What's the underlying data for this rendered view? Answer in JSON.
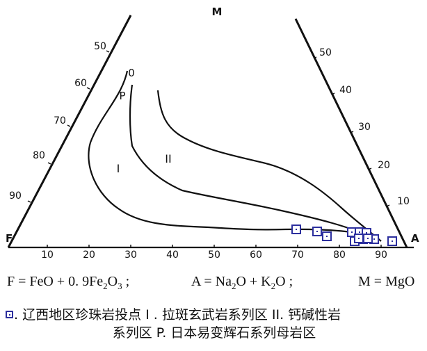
{
  "diagram": {
    "vertex_labels": {
      "top": "M",
      "left": "F",
      "right": "A"
    },
    "bottom_axis_ticks": [
      "10",
      "20",
      "30",
      "40",
      "50",
      "60",
      "70",
      "80",
      "90"
    ],
    "left_axis_ticks": [
      "50",
      "60",
      "70",
      "80",
      "90"
    ],
    "right_axis_ticks": [
      "50",
      "40",
      "30",
      "20",
      "10"
    ],
    "curve_labels": {
      "top_end": "0",
      "p": "P",
      "field_1": "I",
      "field_2": "II"
    },
    "sample_marker_color": "#2c2f9e",
    "line_color": "#111111",
    "sample_count": 12
  },
  "formulas": {
    "f": {
      "lhs": "F = FeO + 0. 9Fe",
      "s1": "2",
      "mid": "O",
      "s2": "3",
      "end": " ;"
    },
    "a": {
      "lhs": "A = Na",
      "s1": "2",
      "mid": "O + K",
      "s2": "2",
      "end": "O ;"
    },
    "m": {
      "text": "M = MgO"
    }
  },
  "legend": {
    "line1": ". 辽西地区珍珠岩投点   I . 拉斑玄武岩系列区   II. 钙碱性岩",
    "line2": "系列区   P. 日本易变辉石系列母岩区"
  }
}
